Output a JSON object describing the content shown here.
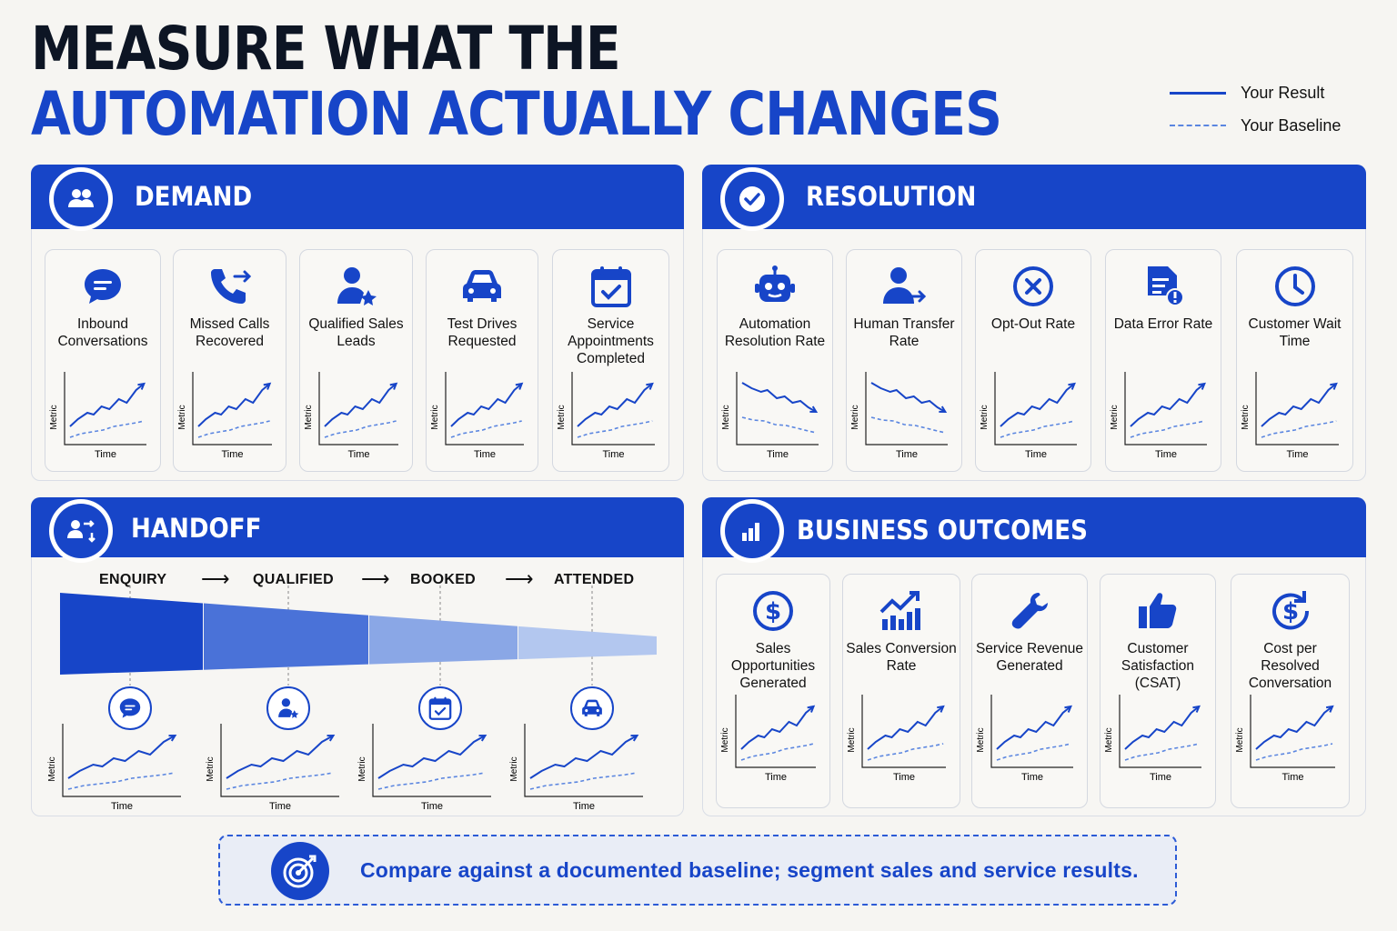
{
  "title": {
    "line1": "MEASURE WHAT THE",
    "line2": "AUTOMATION ACTUALLY CHANGES"
  },
  "legend": {
    "result": "Your Result",
    "baseline": "Your Baseline"
  },
  "colors": {
    "accent": "#1745c8",
    "dark": "#0d1524",
    "baseline": "#5b86e0"
  },
  "mini_chart": {
    "ylabel": "Metric",
    "xlabel": "Time"
  },
  "demand": {
    "title": "DEMAND",
    "icon": "users-icon",
    "cards": [
      {
        "label": "Inbound Conversations",
        "icon": "chat-bubble-icon",
        "trend": "up"
      },
      {
        "label": "Missed Calls Recovered",
        "icon": "phone-forward-icon",
        "trend": "up"
      },
      {
        "label": "Qualified Sales Leads",
        "icon": "user-star-icon",
        "trend": "up"
      },
      {
        "label": "Test Drives Requested",
        "icon": "car-icon",
        "trend": "up"
      },
      {
        "label": "Service Appointments Completed",
        "icon": "calendar-check-icon",
        "trend": "up"
      }
    ]
  },
  "resolution": {
    "title": "RESOLUTION",
    "icon": "check-circle-icon",
    "cards": [
      {
        "label": "Automation Resolution Rate",
        "icon": "robot-icon",
        "trend": "down"
      },
      {
        "label": "Human Transfer Rate",
        "icon": "user-transfer-icon",
        "trend": "down"
      },
      {
        "label": "Opt-Out Rate",
        "icon": "x-circle-icon",
        "trend": "up"
      },
      {
        "label": "Data Error Rate",
        "icon": "document-alert-icon",
        "trend": "up"
      },
      {
        "label": "Customer Wait Time",
        "icon": "clock-icon",
        "trend": "up"
      }
    ]
  },
  "handoff": {
    "title": "HANDOFF",
    "icon": "user-swap-icon",
    "stages": [
      {
        "label": "ENQUIRY",
        "icon": "chat-bubble-icon"
      },
      {
        "label": "QUALIFIED",
        "icon": "user-star-icon"
      },
      {
        "label": "BOOKED",
        "icon": "calendar-check-icon"
      },
      {
        "label": "ATTENDED",
        "icon": "car-icon"
      }
    ],
    "arrow": "⟶"
  },
  "outcomes": {
    "title": "BUSINESS OUTCOMES",
    "icon": "bar-chart-icon",
    "cards": [
      {
        "label": "Sales Opportunities Generated",
        "icon": "dollar-circle-icon",
        "trend": "up"
      },
      {
        "label": "Sales Conversion Rate",
        "icon": "trend-bars-icon",
        "trend": "up"
      },
      {
        "label": "Service Revenue Generated",
        "icon": "wrench-icon",
        "trend": "up"
      },
      {
        "label": "Customer Satisfaction (CSAT)",
        "icon": "thumbs-up-icon",
        "trend": "up"
      },
      {
        "label": "Cost per Resolved Conversation",
        "icon": "dollar-refresh-icon",
        "trend": "up"
      }
    ]
  },
  "footer": {
    "text": "Compare against a documented baseline; segment sales and service results.",
    "icon": "target-icon"
  }
}
